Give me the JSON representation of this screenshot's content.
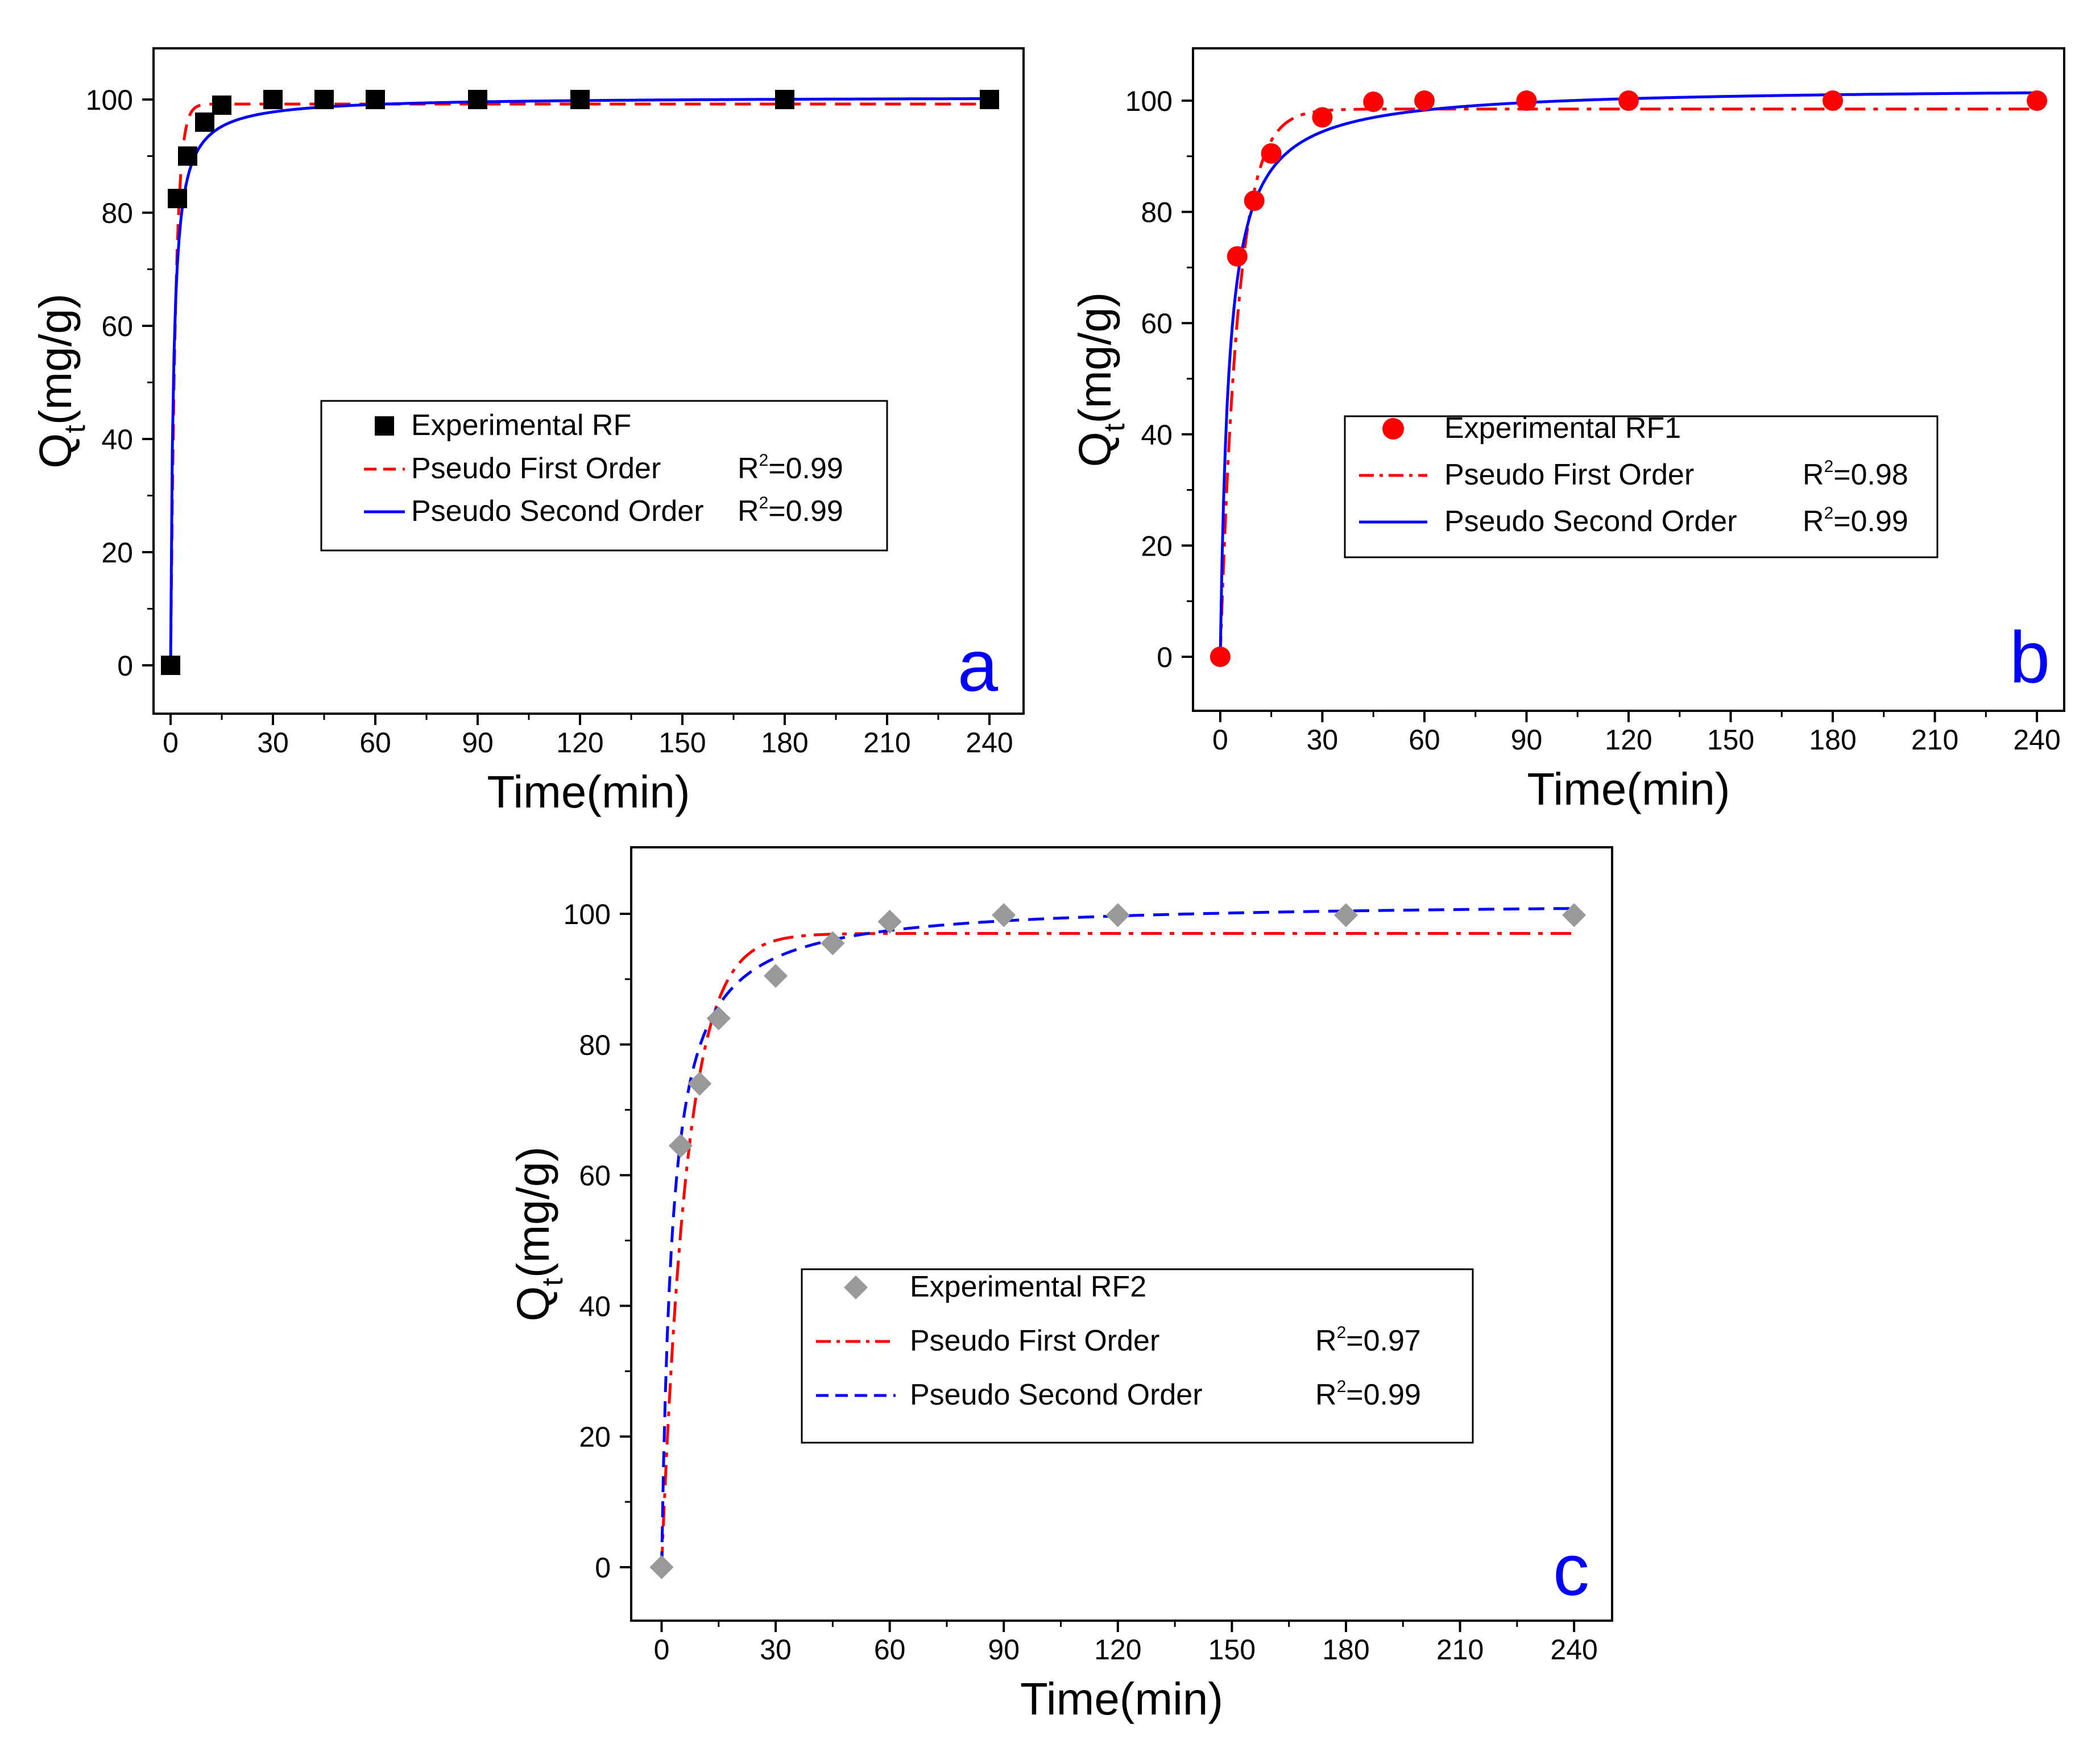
{
  "chart_data": [
    {
      "type": "scatter",
      "panel": "a",
      "xlabel": "Time(min)",
      "ylabel": "Q",
      "ylabel_sub": "t",
      "ylabel_unit": "(mg/g)",
      "xlim": [
        -5,
        250
      ],
      "ylim": [
        -8,
        110
      ],
      "xticks": [
        "0",
        "30",
        "60",
        "90",
        "120",
        "150",
        "180",
        "210",
        "240"
      ],
      "yticks": [
        "0",
        "20",
        "40",
        "60",
        "80",
        "100"
      ],
      "experimental": {
        "name": "Experimental RF",
        "marker": "square",
        "color": "#000000",
        "x": [
          0,
          2,
          5,
          10,
          15,
          30,
          45,
          60,
          90,
          120,
          180,
          240
        ],
        "y": [
          0,
          82.5,
          90,
          96,
          99,
          100,
          100,
          100,
          100,
          100,
          100,
          100
        ]
      },
      "fits": [
        {
          "name": "Pseudo First Order",
          "model": "pfo",
          "qe": 99.2,
          "k": 0.7,
          "color": "#ff0000",
          "style": "dash",
          "r2_prefix": "R",
          "r2_sup": "2",
          "r2_value": "=0.99"
        },
        {
          "name": "Pseudo Second Order",
          "model": "pso",
          "qe": 100.5,
          "k": 0.012,
          "color": "#0000ff",
          "style": "solid",
          "r2_prefix": "R",
          "r2_sup": "2",
          "r2_value": "=0.99"
        }
      ],
      "panel_label": "a"
    },
    {
      "type": "scatter",
      "panel": "b",
      "xlabel": "Time(min)",
      "ylabel": "Q",
      "ylabel_sub": "t",
      "ylabel_unit": "(mg/g)",
      "xlim": [
        -8,
        248
      ],
      "ylim": [
        -10,
        110
      ],
      "xticks": [
        "0",
        "30",
        "60",
        "90",
        "120",
        "150",
        "180",
        "210",
        "240"
      ],
      "yticks": [
        "0",
        "20",
        "40",
        "60",
        "80",
        "100"
      ],
      "experimental": {
        "name": "Experimental RF1",
        "marker": "circle",
        "color": "#ff0000",
        "x": [
          0,
          5,
          10,
          15,
          30,
          45,
          60,
          90,
          120,
          180,
          240
        ],
        "y": [
          0,
          72,
          82,
          90.5,
          97,
          99.8,
          100,
          100,
          100,
          100,
          100
        ]
      },
      "fits": [
        {
          "name": "Pseudo First Order",
          "model": "pfo",
          "qe": 98.5,
          "k": 0.19,
          "color": "#ff0000",
          "style": "dashdot",
          "r2_prefix": "R",
          "r2_sup": "2",
          "r2_value": "=0.98"
        },
        {
          "name": "Pseudo Second Order",
          "model": "pso",
          "qe": 102.5,
          "k": 0.0038,
          "color": "#0000ff",
          "style": "solid",
          "r2_prefix": "R",
          "r2_sup": "2",
          "r2_value": "=0.99"
        }
      ],
      "panel_label": "b"
    },
    {
      "type": "scatter",
      "panel": "c",
      "xlabel": "Time(min)",
      "ylabel": "Q",
      "ylabel_sub": "t",
      "ylabel_unit": "(mg/g)",
      "xlim": [
        -8,
        250
      ],
      "ylim": [
        -8,
        110
      ],
      "xticks": [
        "0",
        "30",
        "60",
        "90",
        "120",
        "150",
        "180",
        "210",
        "240"
      ],
      "yticks": [
        "0",
        "20",
        "40",
        "60",
        "80",
        "100"
      ],
      "experimental": {
        "name": "Experimental RF2",
        "marker": "diamond",
        "color": "#999999",
        "x": [
          0,
          5,
          10,
          15,
          30,
          45,
          60,
          90,
          120,
          180,
          240
        ],
        "y": [
          0,
          64.5,
          74,
          84,
          90.5,
          95.5,
          98.8,
          99.8,
          99.8,
          99.8,
          99.8
        ]
      },
      "fits": [
        {
          "name": "Pseudo First Order",
          "model": "pfo",
          "qe": 97,
          "k": 0.15,
          "color": "#ff0000",
          "style": "dashdot",
          "r2_prefix": "R",
          "r2_sup": "2",
          "r2_value": "=0.97"
        },
        {
          "name": "Pseudo Second Order",
          "model": "pso",
          "qe": 102,
          "k": 0.0035,
          "color": "#0000ff",
          "style": "dash",
          "r2_prefix": "R",
          "r2_sup": "2",
          "r2_value": "=0.99"
        }
      ],
      "panel_label": "c"
    }
  ]
}
